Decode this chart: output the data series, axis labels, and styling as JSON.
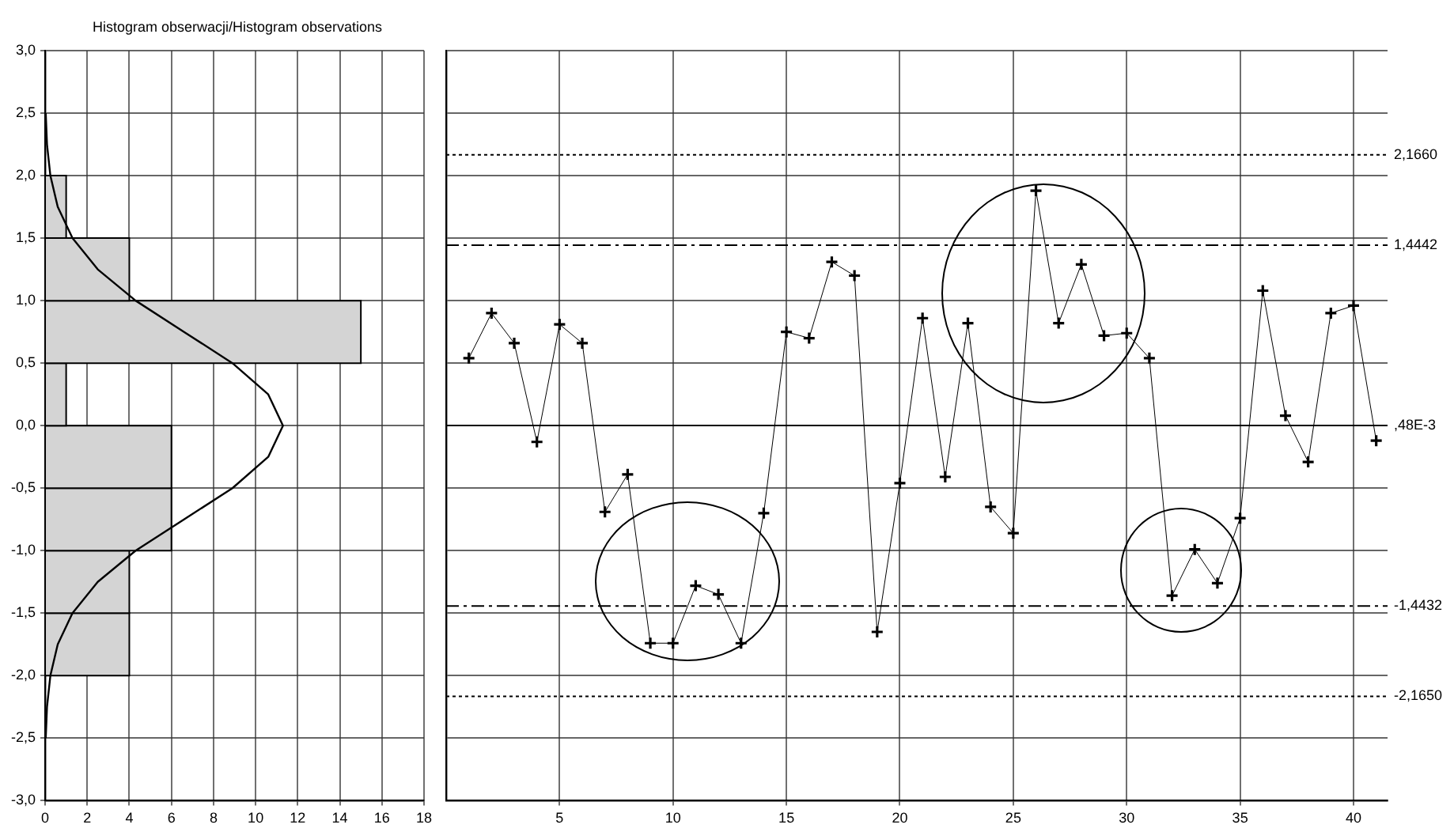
{
  "chart_data": [
    {
      "type": "histogram",
      "orientation": "horizontal",
      "title": "Histogram obserwacji/Histogram observations",
      "bins": [
        -2,
        -1.5,
        -1,
        -0.5,
        0,
        0.5,
        1,
        1.5,
        2
      ],
      "values": [
        4,
        4,
        6,
        6,
        1,
        15,
        4,
        1
      ],
      "color": "#d4d4d4",
      "xlim": [
        0,
        18
      ],
      "xticks": [
        0,
        2,
        4,
        6,
        8,
        10,
        12,
        14,
        16,
        18
      ],
      "ylim": [
        -3,
        3
      ],
      "yticks": [
        {
          "value": 3,
          "label": "3,0"
        },
        {
          "value": 2.5,
          "label": "2,5"
        },
        {
          "value": 2,
          "label": "2,0"
        },
        {
          "value": 1.5,
          "label": "1,5"
        },
        {
          "value": 1,
          "label": "1,0"
        },
        {
          "value": 0.5,
          "label": "0,5"
        },
        {
          "value": 0,
          "label": "0,0"
        },
        {
          "value": -0.5,
          "label": "-0,5"
        },
        {
          "value": -1,
          "label": "-1,0"
        },
        {
          "value": -1.5,
          "label": "-1,5"
        },
        {
          "value": -2,
          "label": "-2,0"
        },
        {
          "value": -2.5,
          "label": "-2,5"
        },
        {
          "value": -3,
          "label": "-3,0"
        }
      ],
      "grid": true,
      "series": [
        {
          "type": "line",
          "color": "#000000",
          "x": [
            -2.5,
            -2.25,
            -2,
            -1.75,
            -1.5,
            -1.25,
            -1,
            -0.75,
            -0.5,
            -0.25,
            0,
            0.25,
            0.5,
            0.75,
            1,
            1.25,
            1.5,
            1.75,
            2,
            2.25,
            2.5
          ],
          "values": [
            0.03,
            0.09,
            0.25,
            0.6,
            1.3,
            2.5,
            4.3,
            6.6,
            8.9,
            10.6,
            11.3,
            10.6,
            8.9,
            6.6,
            4.3,
            2.5,
            1.3,
            0.6,
            0.25,
            0.09,
            0.03
          ]
        }
      ]
    },
    {
      "type": "line",
      "x": [
        1,
        2,
        3,
        4,
        5,
        6,
        7,
        8,
        9,
        10,
        11,
        12,
        13,
        14,
        15,
        16,
        17,
        18,
        19,
        20,
        21,
        22,
        23,
        24,
        25,
        26,
        27,
        28,
        29,
        30,
        31,
        32,
        33,
        34,
        35,
        36,
        37,
        38,
        39,
        40,
        41
      ],
      "values": [
        0.54,
        0.9,
        0.66,
        -0.13,
        0.81,
        0.66,
        -0.69,
        -0.39,
        -1.74,
        -1.74,
        -1.28,
        -1.35,
        -1.74,
        -0.7,
        0.75,
        0.7,
        1.31,
        1.2,
        -1.65,
        -0.46,
        0.86,
        -0.41,
        0.82,
        -0.65,
        -0.86,
        1.88,
        0.82,
        1.29,
        0.72,
        0.74,
        0.54,
        -1.36,
        -0.99,
        -1.26,
        -0.74,
        1.08,
        0.08,
        -0.29,
        0.9,
        0.96,
        -0.12
      ],
      "color": "#000000",
      "marker": "cross",
      "xlim": [
        0,
        41.5
      ],
      "xticks": [
        5,
        10,
        15,
        20,
        25,
        30,
        35,
        40
      ],
      "ylim": [
        -3,
        3
      ],
      "yticks": [
        3,
        2.5,
        2,
        1.5,
        1,
        0.5,
        0,
        -0.5,
        -1,
        -1.5,
        -2,
        -2.5,
        -3
      ],
      "tick_labels": "x",
      "grid": true,
      "ref_lines": [
        {
          "axis": "y",
          "value": 2.166,
          "label": "2,1660",
          "line_style": "dotted"
        },
        {
          "axis": "y",
          "value": 1.4442,
          "label": "1,4442",
          "line_style": "dashed"
        },
        {
          "axis": "y",
          "value": 0.00048,
          "label": ",48E-3",
          "line_style": "solid"
        },
        {
          "axis": "y",
          "value": -1.4432,
          "label": "-1,4432",
          "line_style": "dashed"
        },
        {
          "axis": "y",
          "value": -2.165,
          "label": "-2,1650",
          "line_style": "dotted"
        }
      ]
    }
  ]
}
